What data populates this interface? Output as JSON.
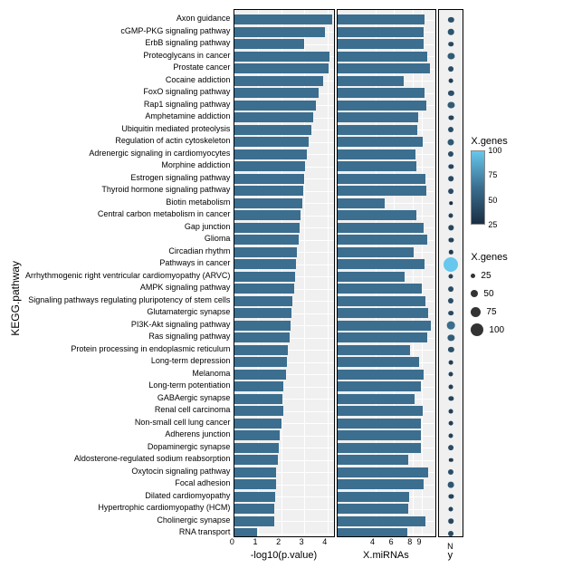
{
  "y_axis_title": "KEGG.pathway",
  "panels": {
    "p1": {
      "xlabel": "-log10(p.value)",
      "xmax": 4.3,
      "ticks": [
        0,
        1,
        2,
        3,
        4
      ],
      "width": 110
    },
    "p2": {
      "xlabel": "X.miRNAs",
      "xmax": 10.5,
      "ticks": [
        4,
        6,
        8,
        9
      ],
      "width": 108
    },
    "p3": {
      "xlabel": "y",
      "tick_label": "N"
    }
  },
  "row_height": 13.5,
  "bar_color": "#3b6e8f",
  "panel_bg": "#f0f0f0",
  "grid_color": "#ffffff",
  "legend": {
    "color_title": "X.genes",
    "color_stops": [
      "100",
      "75",
      "50",
      "25"
    ],
    "size_title": "X.genes",
    "sizes": [
      {
        "label": "25",
        "d": 5
      },
      {
        "label": "50",
        "d": 8
      },
      {
        "label": "75",
        "d": 11
      },
      {
        "label": "100",
        "d": 14
      }
    ]
  },
  "rows": [
    {
      "label": "Axon guidance",
      "v1": 4.2,
      "v2": 9.3,
      "genes": 28
    },
    {
      "label": "cGMP-PKG signaling pathway",
      "v1": 3.9,
      "v2": 9.2,
      "genes": 30
    },
    {
      "label": "ErbB signaling pathway",
      "v1": 3.0,
      "v2": 9.2,
      "genes": 22
    },
    {
      "label": "Proteoglycans in cancer",
      "v1": 4.1,
      "v2": 9.6,
      "genes": 35
    },
    {
      "label": "Prostate cancer",
      "v1": 4.05,
      "v2": 9.9,
      "genes": 24
    },
    {
      "label": "Cocaine addiction",
      "v1": 3.8,
      "v2": 7.1,
      "genes": 15
    },
    {
      "label": "FoxO signaling pathway",
      "v1": 3.6,
      "v2": 9.3,
      "genes": 27
    },
    {
      "label": "Rap1 signaling pathway",
      "v1": 3.5,
      "v2": 9.5,
      "genes": 35
    },
    {
      "label": "Amphetamine addiction",
      "v1": 3.4,
      "v2": 8.6,
      "genes": 18
    },
    {
      "label": "Ubiquitin mediated proteolysis",
      "v1": 3.3,
      "v2": 8.5,
      "genes": 25
    },
    {
      "label": "Regulation of actin cytoskeleton",
      "v1": 3.2,
      "v2": 9.1,
      "genes": 34
    },
    {
      "label": "Adrenergic signaling in cardiomyocytes",
      "v1": 3.1,
      "v2": 8.3,
      "genes": 26
    },
    {
      "label": "Morphine addiction",
      "v1": 3.05,
      "v2": 8.4,
      "genes": 20
    },
    {
      "label": "Estrogen signaling pathway",
      "v1": 3.0,
      "v2": 9.4,
      "genes": 22
    },
    {
      "label": "Thyroid hormone signaling pathway",
      "v1": 2.95,
      "v2": 9.5,
      "genes": 24
    },
    {
      "label": "Biotin metabolism",
      "v1": 2.9,
      "v2": 5.0,
      "genes": 4
    },
    {
      "label": "Central carbon metabolism in cancer",
      "v1": 2.85,
      "v2": 8.4,
      "genes": 17
    },
    {
      "label": "Gap junction",
      "v1": 2.8,
      "v2": 9.2,
      "genes": 20
    },
    {
      "label": "Glioma",
      "v1": 2.75,
      "v2": 9.6,
      "genes": 18
    },
    {
      "label": "Circadian rhythm",
      "v1": 2.7,
      "v2": 8.1,
      "genes": 12
    },
    {
      "label": "Pathways in cancer",
      "v1": 2.65,
      "v2": 9.3,
      "genes": 110
    },
    {
      "label": "Arrhythmogenic right ventricular cardiomyopathy (ARVC)",
      "v1": 2.6,
      "v2": 7.2,
      "genes": 17
    },
    {
      "label": "AMPK signaling pathway",
      "v1": 2.55,
      "v2": 9.0,
      "genes": 24
    },
    {
      "label": "Signaling pathways regulating pluripotency of stem cells",
      "v1": 2.5,
      "v2": 9.4,
      "genes": 26
    },
    {
      "label": "Glutamatergic synapse",
      "v1": 2.45,
      "v2": 9.7,
      "genes": 23
    },
    {
      "label": "PI3K-Akt signaling pathway",
      "v1": 2.4,
      "v2": 10.0,
      "genes": 48
    },
    {
      "label": "Ras signaling pathway",
      "v1": 2.35,
      "v2": 9.6,
      "genes": 36
    },
    {
      "label": "Protein processing in endoplasmic reticulum",
      "v1": 2.3,
      "v2": 7.7,
      "genes": 27
    },
    {
      "label": "Long-term depression",
      "v1": 2.25,
      "v2": 8.7,
      "genes": 15
    },
    {
      "label": "Melanoma",
      "v1": 2.2,
      "v2": 9.2,
      "genes": 17
    },
    {
      "label": "Long-term potentiation",
      "v1": 2.1,
      "v2": 8.9,
      "genes": 16
    },
    {
      "label": "GABAergic synapse",
      "v1": 2.05,
      "v2": 8.2,
      "genes": 19
    },
    {
      "label": "Renal cell carcinoma",
      "v1": 2.08,
      "v2": 9.1,
      "genes": 16
    },
    {
      "label": "Non-small cell lung cancer",
      "v1": 2.0,
      "v2": 8.9,
      "genes": 15
    },
    {
      "label": "Adherens junction",
      "v1": 1.95,
      "v2": 8.9,
      "genes": 17
    },
    {
      "label": "Dopaminergic synapse",
      "v1": 1.9,
      "v2": 8.9,
      "genes": 24
    },
    {
      "label": "Aldosterone-regulated sodium reabsorption",
      "v1": 1.85,
      "v2": 7.5,
      "genes": 12
    },
    {
      "label": "Oxytocin signaling pathway",
      "v1": 1.8,
      "v2": 9.7,
      "genes": 26
    },
    {
      "label": "Focal adhesion",
      "v1": 1.78,
      "v2": 9.2,
      "genes": 32
    },
    {
      "label": "Dilated cardiomyopathy",
      "v1": 1.75,
      "v2": 7.6,
      "genes": 18
    },
    {
      "label": "Hypertrophic cardiomyopathy (HCM)",
      "v1": 1.72,
      "v2": 7.5,
      "genes": 17
    },
    {
      "label": "Cholinergic synapse",
      "v1": 1.7,
      "v2": 9.4,
      "genes": 22
    },
    {
      "label": "RNA transport",
      "v1": 0.95,
      "v2": 7.4,
      "genes": 25
    }
  ]
}
